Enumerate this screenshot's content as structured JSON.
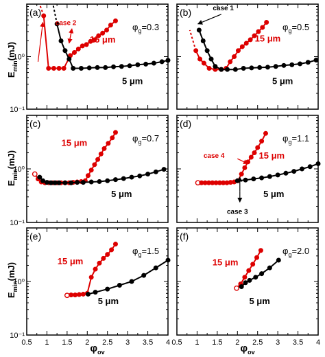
{
  "figure": {
    "ylabel_main": "E",
    "ylabel_sub": "min",
    "ylabel_unit": "(mJ)",
    "xlabel_main": "φ",
    "xlabel_sub": "ov",
    "phi_symbol": "φ",
    "phi_sub": "g",
    "colors": {
      "red": "#dd0000",
      "black": "#000000"
    }
  },
  "chart_data": [
    {
      "type": "line",
      "panel_label": "(a)",
      "phi_g_value": "=0.3",
      "xlim": [
        0.5,
        4
      ],
      "ylim": [
        0.1,
        10
      ],
      "yscale": "log",
      "grid": false,
      "xticks": [
        "0.5",
        "1",
        "1.5",
        "2",
        "2.5",
        "3",
        "3.5",
        "4"
      ],
      "yticks": [
        "10⁻¹",
        "10⁰"
      ],
      "series": [
        {
          "name": "15 μm",
          "color": "#dd0000",
          "dashed_to": [
            0.82,
            10
          ],
          "open_first": false,
          "x": [
            0.92,
            1.04,
            1.17,
            1.3,
            1.42,
            1.58,
            1.68,
            1.78,
            1.88,
            1.98,
            2.08,
            2.18,
            2.28,
            2.38,
            2.48,
            2.58,
            2.7
          ],
          "y": [
            6.0,
            0.6,
            0.6,
            0.6,
            0.6,
            1.05,
            1.2,
            1.4,
            1.6,
            1.7,
            1.95,
            2.1,
            2.5,
            2.8,
            3.2,
            4.0,
            4.8
          ]
        },
        {
          "name": "5 μm",
          "color": "#000000",
          "dashed_to": [
            1.15,
            10
          ],
          "open_first": false,
          "x": [
            1.25,
            1.35,
            1.45,
            1.55,
            1.65,
            1.85,
            2.05,
            2.25,
            2.45,
            2.65,
            2.85,
            3.05,
            3.25,
            3.45,
            3.65,
            3.85,
            4.0
          ],
          "y": [
            4.2,
            2.0,
            1.3,
            0.9,
            0.6,
            0.6,
            0.61,
            0.62,
            0.62,
            0.64,
            0.65,
            0.67,
            0.7,
            0.72,
            0.75,
            0.8,
            0.85
          ]
        }
      ],
      "labels": [
        {
          "text": "15 μm",
          "color": "#dd0000",
          "x": 2.38,
          "y": 1.85,
          "size": 13
        },
        {
          "text": "5 μm",
          "color": "#000000",
          "x": 3.12,
          "y": 0.3,
          "size": 13
        },
        {
          "text": "case 2",
          "color": "#dd0000",
          "x": 1.47,
          "y": 4.0,
          "size": 10
        }
      ],
      "arrows": [
        {
          "color": "#dd0000",
          "from": [
            0.78,
            0.8
          ],
          "to": [
            0.9,
            4.5
          ]
        },
        {
          "color": "#dd0000",
          "from": [
            1.55,
            1.8
          ],
          "to": [
            1.62,
            3.4
          ]
        },
        {
          "color": "#dd0000",
          "from": [
            1.62,
            3.4
          ],
          "to": [
            1.55,
            1.8
          ]
        }
      ]
    },
    {
      "type": "line",
      "panel_label": "(b)",
      "phi_g_value": "=0.5",
      "xlim": [
        0.5,
        4
      ],
      "ylim": [
        0.1,
        10
      ],
      "yscale": "log",
      "grid": false,
      "xticks": [
        "0.5",
        "1",
        "1.5",
        "2",
        "2.5",
        "3",
        "3.5",
        "4"
      ],
      "yticks": [
        "10⁻¹",
        "10⁰"
      ],
      "series": [
        {
          "name": "15 μm",
          "color": "#dd0000",
          "dashed_to": [
            0.82,
            3.2
          ],
          "open_first": false,
          "x": [
            0.97,
            1.07,
            1.17,
            1.3,
            1.45,
            1.6,
            1.72,
            1.82,
            1.92,
            2.02,
            2.12,
            2.22,
            2.32,
            2.42,
            2.52,
            2.62,
            2.72
          ],
          "y": [
            1.3,
            0.9,
            0.75,
            0.6,
            0.57,
            0.57,
            0.6,
            0.8,
            1.0,
            1.3,
            1.55,
            1.8,
            2.1,
            2.5,
            3.0,
            3.6,
            4.5
          ]
        },
        {
          "name": "5 μm",
          "color": "#000000",
          "dashed_to": null,
          "open_first": false,
          "x": [
            1.05,
            1.15,
            1.25,
            1.35,
            1.45,
            1.6,
            1.75,
            1.95,
            2.15,
            2.35,
            2.55,
            2.75,
            2.95,
            3.15,
            3.35,
            3.55,
            3.75,
            3.95
          ],
          "y": [
            3.2,
            2.0,
            1.3,
            0.9,
            0.65,
            0.57,
            0.57,
            0.57,
            0.6,
            0.61,
            0.62,
            0.63,
            0.65,
            0.68,
            0.7,
            0.73,
            0.78,
            0.86
          ]
        }
      ],
      "labels": [
        {
          "text": "15 μm",
          "color": "#dd0000",
          "x": 2.75,
          "y": 1.95,
          "size": 13
        },
        {
          "text": "5 μm",
          "color": "#000000",
          "x": 3.12,
          "y": 0.3,
          "size": 13
        },
        {
          "text": "case 1",
          "color": "#000000",
          "x": 1.65,
          "y": 7.6,
          "size": 10
        }
      ],
      "arrows": [
        {
          "color": "#000000",
          "from": [
            1.6,
            6.4
          ],
          "to": [
            1.02,
            4.2
          ]
        }
      ]
    },
    {
      "type": "line",
      "panel_label": "(c)",
      "phi_g_value": "=0.7",
      "xlim": [
        0.5,
        4
      ],
      "ylim": [
        0.1,
        10
      ],
      "yscale": "log",
      "grid": false,
      "xticks": [
        "0.5",
        "1",
        "1.5",
        "2",
        "2.5",
        "3",
        "3.5",
        "4"
      ],
      "yticks": [
        "10⁻¹",
        "10⁰"
      ],
      "series": [
        {
          "name": "15 μm",
          "color": "#dd0000",
          "dashed_to": null,
          "open_first": true,
          "x": [
            0.7,
            0.78,
            0.86,
            0.95,
            1.05,
            1.15,
            1.25,
            1.35,
            1.45,
            1.55,
            1.65,
            1.75,
            1.85,
            1.95,
            2.02,
            2.1,
            2.18,
            2.26,
            2.34,
            2.42,
            2.52,
            2.62,
            2.7
          ],
          "y": [
            0.8,
            0.65,
            0.57,
            0.55,
            0.55,
            0.55,
            0.55,
            0.55,
            0.55,
            0.55,
            0.56,
            0.57,
            0.58,
            0.6,
            0.75,
            0.95,
            1.2,
            1.5,
            1.9,
            2.4,
            3.0,
            3.8,
            4.8
          ]
        },
        {
          "name": "5 μm",
          "color": "#000000",
          "dashed_to": null,
          "open_first": false,
          "x": [
            0.82,
            0.9,
            1.0,
            1.1,
            1.2,
            1.3,
            1.45,
            1.6,
            1.75,
            1.9,
            2.1,
            2.3,
            2.5,
            2.7,
            2.9,
            3.1,
            3.3,
            3.5,
            3.7,
            3.9
          ],
          "y": [
            0.7,
            0.6,
            0.56,
            0.55,
            0.55,
            0.55,
            0.55,
            0.55,
            0.56,
            0.56,
            0.57,
            0.58,
            0.6,
            0.63,
            0.66,
            0.7,
            0.74,
            0.8,
            0.88,
            0.98
          ]
        }
      ],
      "labels": [
        {
          "text": "15 μm",
          "color": "#dd0000",
          "x": 1.68,
          "y": 2.7,
          "size": 13
        },
        {
          "text": "5 μm",
          "color": "#000000",
          "x": 2.85,
          "y": 0.3,
          "size": 13
        }
      ],
      "arrows": []
    },
    {
      "type": "line",
      "panel_label": "(d)",
      "phi_g_value": "=1.1",
      "xlim": [
        0.5,
        4
      ],
      "ylim": [
        0.1,
        10
      ],
      "yscale": "log",
      "grid": false,
      "xticks": [
        "0.5",
        "1",
        "1.5",
        "2",
        "2.5",
        "3",
        "3.5",
        "4"
      ],
      "yticks": [
        "10⁻¹",
        "10⁰"
      ],
      "series": [
        {
          "name": "15 μm",
          "color": "#dd0000",
          "dashed_to": null,
          "open_first": true,
          "x": [
            1.02,
            1.11,
            1.2,
            1.29,
            1.38,
            1.47,
            1.56,
            1.65,
            1.74,
            1.83,
            1.92,
            2.01,
            2.1,
            2.18,
            2.26,
            2.34,
            2.42,
            2.5,
            2.6,
            2.7
          ],
          "y": [
            0.55,
            0.55,
            0.55,
            0.55,
            0.55,
            0.55,
            0.55,
            0.55,
            0.55,
            0.56,
            0.57,
            0.6,
            0.8,
            1.05,
            1.35,
            1.65,
            2.0,
            2.5,
            3.3,
            4.6
          ]
        },
        {
          "name": "5 μm",
          "color": "#000000",
          "dashed_to": null,
          "open_first": false,
          "x": [
            2.0,
            2.2,
            2.4,
            2.6,
            2.8,
            3.0,
            3.2,
            3.4,
            3.6,
            3.8,
            4.0
          ],
          "y": [
            0.6,
            0.62,
            0.65,
            0.68,
            0.72,
            0.77,
            0.83,
            0.9,
            1.0,
            1.1,
            1.25
          ]
        }
      ],
      "labels": [
        {
          "text": "15 μm",
          "color": "#dd0000",
          "x": 2.85,
          "y": 1.55,
          "size": 13
        },
        {
          "text": "5 μm",
          "color": "#000000",
          "x": 2.9,
          "y": 0.3,
          "size": 13
        },
        {
          "text": "case 4",
          "color": "#dd0000",
          "x": 1.42,
          "y": 1.6,
          "size": 10
        },
        {
          "text": "case 3",
          "color": "#000000",
          "x": 2.0,
          "y": 0.145,
          "size": 10
        }
      ],
      "arrows": [
        {
          "color": "#dd0000",
          "from": [
            2.0,
            1.55
          ],
          "to": [
            2.26,
            1.25
          ]
        },
        {
          "color": "#000000",
          "from": [
            2.06,
            0.38
          ],
          "to": [
            2.06,
            0.24
          ]
        },
        {
          "color": "#000000",
          "from": [
            2.06,
            0.38
          ],
          "to": [
            2.06,
            0.7
          ]
        }
      ]
    },
    {
      "type": "line",
      "panel_label": "(e)",
      "phi_g_value": "=1.5",
      "xlim": [
        0.5,
        4
      ],
      "ylim": [
        0.1,
        10
      ],
      "yscale": "log",
      "grid": false,
      "xticks": [
        "0.5",
        "1",
        "1.5",
        "2",
        "2.5",
        "3",
        "3.5",
        "4"
      ],
      "yticks": [
        "10⁻¹",
        "10⁰"
      ],
      "series": [
        {
          "name": "15 μm",
          "color": "#dd0000",
          "dashed_to": null,
          "open_first": true,
          "x": [
            1.5,
            1.6,
            1.7,
            1.8,
            1.9,
            2.0,
            2.1,
            2.2,
            2.3,
            2.4,
            2.5,
            2.6,
            2.7
          ],
          "y": [
            0.55,
            0.56,
            0.56,
            0.57,
            0.58,
            0.6,
            1.2,
            1.7,
            2.2,
            2.7,
            3.2,
            3.9,
            5.0
          ]
        },
        {
          "name": "5 μm",
          "color": "#000000",
          "dashed_to": null,
          "open_first": false,
          "x": [
            2.02,
            2.2,
            2.5,
            2.8,
            3.1,
            3.4,
            3.7,
            4.0
          ],
          "y": [
            0.58,
            0.63,
            0.72,
            0.85,
            1.0,
            1.3,
            1.8,
            2.5
          ]
        }
      ],
      "labels": [
        {
          "text": "15 μm",
          "color": "#dd0000",
          "x": 1.58,
          "y": 2.1,
          "size": 13
        },
        {
          "text": "5 μm",
          "color": "#000000",
          "x": 2.52,
          "y": 0.38,
          "size": 13
        }
      ],
      "arrows": []
    },
    {
      "type": "line",
      "panel_label": "(f)",
      "phi_g_value": "=2.0",
      "xlim": [
        0.5,
        4
      ],
      "ylim": [
        0.1,
        10
      ],
      "yscale": "log",
      "grid": false,
      "xticks": [
        "0.5",
        "1",
        "1.5",
        "2",
        "2.5",
        "3",
        "3.5",
        "4"
      ],
      "yticks": [
        "10⁻¹",
        "10⁰"
      ],
      "series": [
        {
          "name": "15 μm",
          "color": "#dd0000",
          "dashed_to": null,
          "open_first": true,
          "x": [
            1.98,
            2.08,
            2.18,
            2.28,
            2.38,
            2.48,
            2.58
          ],
          "y": [
            0.75,
            0.9,
            1.2,
            1.6,
            2.1,
            2.8,
            3.8
          ]
        },
        {
          "name": "5 μm",
          "color": "#000000",
          "dashed_to": null,
          "open_first": false,
          "x": [
            2.1,
            2.2,
            2.3,
            2.45,
            2.6,
            2.8,
            3.02
          ],
          "y": [
            0.8,
            0.95,
            1.05,
            1.2,
            1.4,
            1.8,
            2.5
          ]
        }
      ],
      "labels": [
        {
          "text": "15 μm",
          "color": "#dd0000",
          "x": 1.7,
          "y": 2.0,
          "size": 13
        },
        {
          "text": "5 μm",
          "color": "#000000",
          "x": 2.55,
          "y": 0.38,
          "size": 13
        }
      ],
      "arrows": []
    }
  ]
}
